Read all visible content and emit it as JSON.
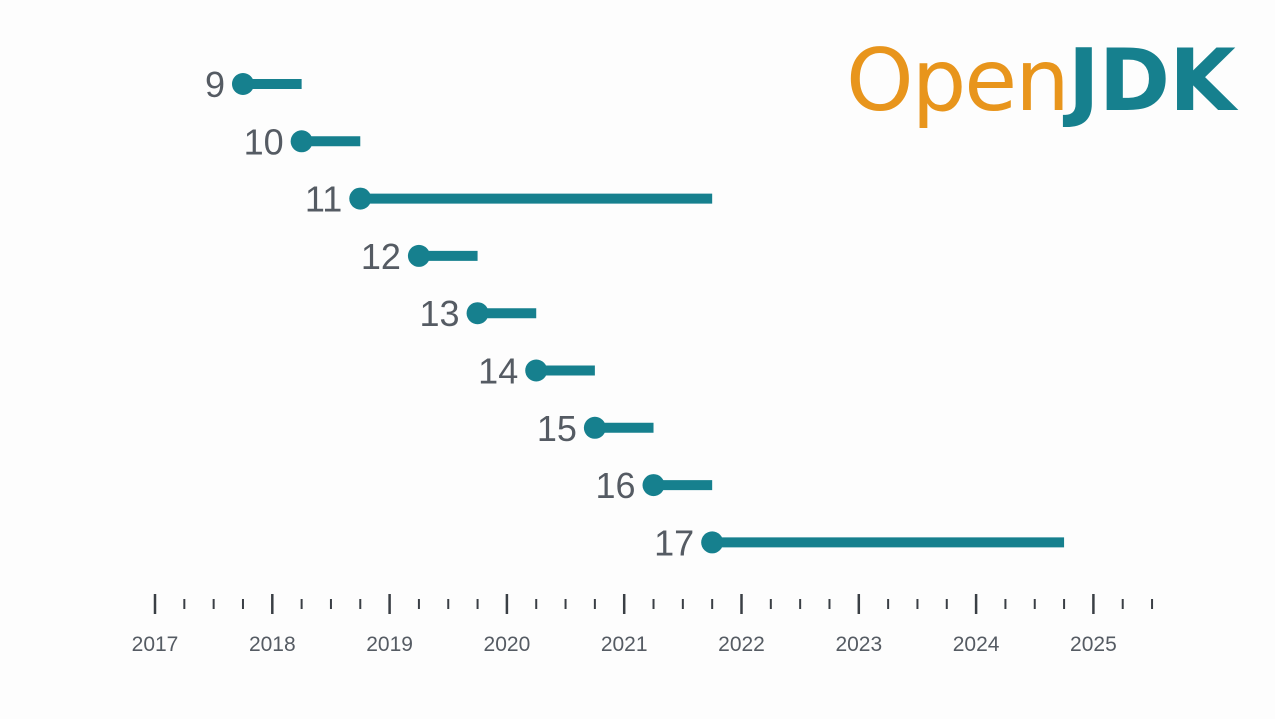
{
  "logo": {
    "part1": "Open",
    "part2": "JDK"
  },
  "colors": {
    "bar": "#16808e",
    "logo_open": "#e8951c",
    "logo_jdk": "#16808e",
    "text": "#555b63",
    "axis": "#3a3f45"
  },
  "chart_data": {
    "type": "timeline",
    "title": "",
    "xlabel": "",
    "ylabel": "",
    "xlim": [
      2017,
      2025.5
    ],
    "x_ticks": [
      "2017",
      "2018",
      "2019",
      "2020",
      "2021",
      "2022",
      "2023",
      "2024",
      "2025"
    ],
    "minor_ticks_per_year": 4,
    "grid": false,
    "legend": "none",
    "releases": [
      {
        "label": "9",
        "start": 2017.75,
        "end": 2018.25
      },
      {
        "label": "10",
        "start": 2018.25,
        "end": 2018.75
      },
      {
        "label": "11",
        "start": 2018.75,
        "end": 2021.75
      },
      {
        "label": "12",
        "start": 2019.25,
        "end": 2019.75
      },
      {
        "label": "13",
        "start": 2019.75,
        "end": 2020.25
      },
      {
        "label": "14",
        "start": 2020.25,
        "end": 2020.75
      },
      {
        "label": "15",
        "start": 2020.75,
        "end": 2021.25
      },
      {
        "label": "16",
        "start": 2021.25,
        "end": 2021.75
      },
      {
        "label": "17",
        "start": 2021.75,
        "end": 2024.75
      }
    ]
  }
}
